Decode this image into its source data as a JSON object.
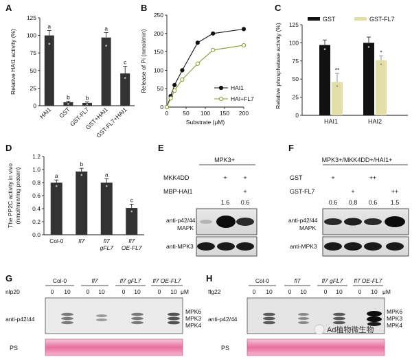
{
  "panels": {
    "A": {
      "letter": "A"
    },
    "B": {
      "letter": "B"
    },
    "C": {
      "letter": "C"
    },
    "D": {
      "letter": "D"
    },
    "E": {
      "letter": "E"
    },
    "F": {
      "letter": "F"
    },
    "G": {
      "letter": "G"
    },
    "H": {
      "letter": "H"
    }
  },
  "chart_data": [
    {
      "panel": "A",
      "type": "bar",
      "ylabel": "Relative HAI1 activity (%)",
      "categories": [
        "HAI1",
        "GST",
        "GST-FL7",
        "GST+HAI1",
        "GST-FL7+HAI1"
      ],
      "values": [
        100,
        5,
        4,
        97,
        46
      ],
      "errors": [
        7,
        1.5,
        1.5,
        7,
        10
      ],
      "letters": [
        "a",
        "b",
        "b",
        "a",
        "c"
      ],
      "ylim": [
        0,
        125
      ],
      "yticks": [
        "0",
        "25",
        "50",
        "75",
        "100",
        "125"
      ],
      "colors": {
        "bar": "#333333"
      }
    },
    {
      "panel": "B",
      "type": "line",
      "xlabel": "Substrate (μM)",
      "ylabel": "Release of Pi (nmol/min)",
      "xlim": [
        0,
        200
      ],
      "ylim": [
        0,
        250
      ],
      "xticks": [
        "0",
        "50",
        "100",
        "150",
        "200"
      ],
      "yticks": [
        "0",
        "50",
        "100",
        "150",
        "200",
        "250"
      ],
      "series": [
        {
          "name": "HAI1",
          "x": [
            0,
            10,
            20,
            40,
            80,
            120,
            200
          ],
          "y": [
            0,
            30,
            60,
            100,
            175,
            200,
            212
          ],
          "color": "#111111",
          "fill": "#111111"
        },
        {
          "name": "HAI+FL7",
          "x": [
            0,
            10,
            20,
            40,
            80,
            120,
            200
          ],
          "y": [
            0,
            24,
            45,
            75,
            118,
            155,
            168
          ],
          "color": "#8a9a2a",
          "fill": "#ffffff"
        }
      ],
      "legend_position": "center-right"
    },
    {
      "panel": "C",
      "type": "bar",
      "ylabel": "Relative phosphatase activity (%)",
      "categories": [
        "HAI1",
        "HAI2"
      ],
      "series": [
        {
          "name": "GST",
          "values": [
            97,
            100
          ],
          "errors": [
            7,
            8
          ],
          "color": "#111111"
        },
        {
          "name": "GST-FL7",
          "values": [
            46,
            76
          ],
          "errors": [
            12,
            6
          ],
          "color": "#e2e0a8"
        }
      ],
      "sig": [
        [
          "",
          "**"
        ],
        [
          "",
          "*"
        ]
      ],
      "ylim": [
        0,
        125
      ],
      "yticks": [
        "0",
        "25",
        "50",
        "75",
        "100",
        "125"
      ],
      "legend_position": "top"
    },
    {
      "panel": "D",
      "type": "bar",
      "ylabel": "The PP2C activity in vivo\n(nmol/min/mg protein)",
      "categories": [
        "Col-0",
        "fl7",
        "fl7 gFL7",
        "fl7 OE-FL7"
      ],
      "values": [
        0.8,
        0.97,
        0.8,
        0.41
      ],
      "errors": [
        0.04,
        0.05,
        0.06,
        0.06
      ],
      "letters": [
        "a",
        "b",
        "a",
        "c"
      ],
      "ylim": [
        0,
        1.2
      ],
      "yticks": [
        "0.0",
        "0.2",
        "0.4",
        "0.6",
        "0.8",
        "1.0",
        "1.2"
      ],
      "colors": {
        "bar": "#333333"
      }
    }
  ],
  "E": {
    "header": "MPK3+",
    "row1_label": "MKK4DD",
    "row1_vals": [
      "+",
      "+"
    ],
    "row2_label": "MBP-HAI1",
    "row2_vals": [
      "",
      "+"
    ],
    "quant": [
      "1.6",
      "0.6"
    ],
    "blot1_label_a": "anti-p42/44",
    "blot1_label_b": "MAPK",
    "blot2_label": "anti-MPK3"
  },
  "F": {
    "header": "MPK3+/MKK4DD+/HAI1+",
    "row1_label": "GST",
    "row1_vals": [
      "+",
      "",
      "++",
      ""
    ],
    "row2_label": "GST-FL7",
    "row2_vals": [
      "",
      "+",
      "",
      "++"
    ],
    "quant": [
      "0.6",
      "0.8",
      "0.6",
      "1.5"
    ],
    "blot1_label_a": "anti-p42/44",
    "blot1_label_b": "MAPK",
    "blot2_label": "anti-MPK3"
  },
  "G": {
    "treat": "nlp20",
    "unit": "μM",
    "groups": [
      "Col-0",
      "fl7",
      "fl7 gFL7",
      "fl7 OE-FL7"
    ],
    "doses": [
      "0",
      "10"
    ],
    "blot_label": "anti-p42/44",
    "bands": [
      "MPK6",
      "MPK3",
      "MPK4"
    ],
    "ps_label": "PS"
  },
  "H": {
    "treat": "flg22",
    "unit": "μM",
    "groups": [
      "Col-0",
      "fl7",
      "fl7 gFL7",
      "fl7 OE-FL7"
    ],
    "doses": [
      "0",
      "10"
    ],
    "blot_label": "anti-p42/44",
    "bands": [
      "MPK6",
      "MPK3",
      "MPK4"
    ],
    "ps_label": "PS"
  },
  "watermark": "Ad植物微生物"
}
